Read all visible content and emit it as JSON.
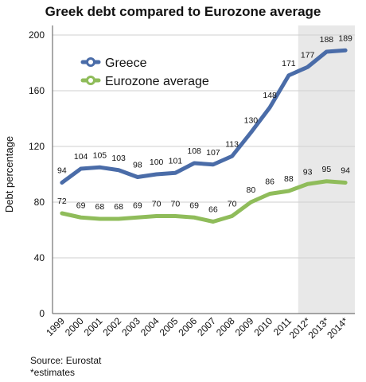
{
  "chart_data": {
    "type": "line",
    "title": "Greek debt compared to Eurozone average",
    "ylabel": "Debt percentage",
    "xlabel": "",
    "categories": [
      "1999",
      "2000",
      "2001",
      "2002",
      "2003",
      "2004",
      "2005",
      "2006",
      "2007",
      "2008",
      "2009",
      "2010",
      "2011",
      "2012*",
      "2013*",
      "2014*"
    ],
    "ylim": [
      0,
      200
    ],
    "yticks": [
      0,
      40,
      80,
      120,
      160,
      200
    ],
    "grid": true,
    "legend": "top-left",
    "shaded_region": {
      "from": "2012*",
      "to": "2014*",
      "color": "#e8e8e8"
    },
    "series": [
      {
        "name": "Greece",
        "color": "#4a6ca8",
        "values": [
          94,
          104,
          105,
          103,
          98,
          100,
          101,
          108,
          107,
          113,
          130,
          148,
          171,
          177,
          188,
          189
        ]
      },
      {
        "name": "Eurozone average",
        "color": "#8fbc5a",
        "values": [
          72,
          69,
          68,
          68,
          69,
          70,
          70,
          69,
          66,
          70,
          80,
          86,
          88,
          93,
          95,
          94
        ]
      }
    ]
  },
  "footer": {
    "source": "Source: Eurostat",
    "note": "*estimates"
  }
}
